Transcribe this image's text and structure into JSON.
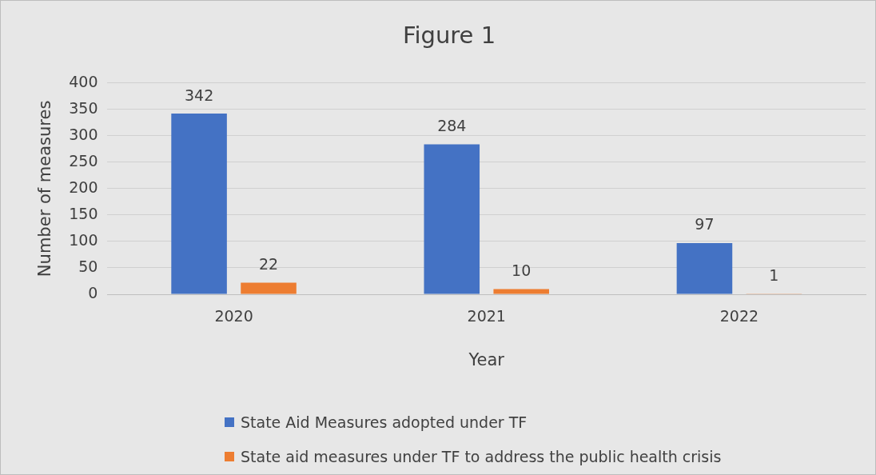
{
  "chart_data": {
    "type": "bar",
    "title": "Figure 1",
    "xlabel": "Year",
    "ylabel": "Number of measures",
    "categories": [
      "2020",
      "2021",
      "2022"
    ],
    "series": [
      {
        "name": "State Aid Measures adopted under TF",
        "color": "#4472c4",
        "values": [
          342,
          284,
          97
        ]
      },
      {
        "name": "State aid measures under TF to address the public health crisis",
        "color": "#ed7d31",
        "values": [
          22,
          10,
          1
        ]
      }
    ],
    "ylim": [
      0,
      400
    ],
    "yticks": [
      0,
      50,
      100,
      150,
      200,
      250,
      300,
      350,
      400
    ],
    "grid": "y",
    "legend": "bottom",
    "data_labels": true
  }
}
